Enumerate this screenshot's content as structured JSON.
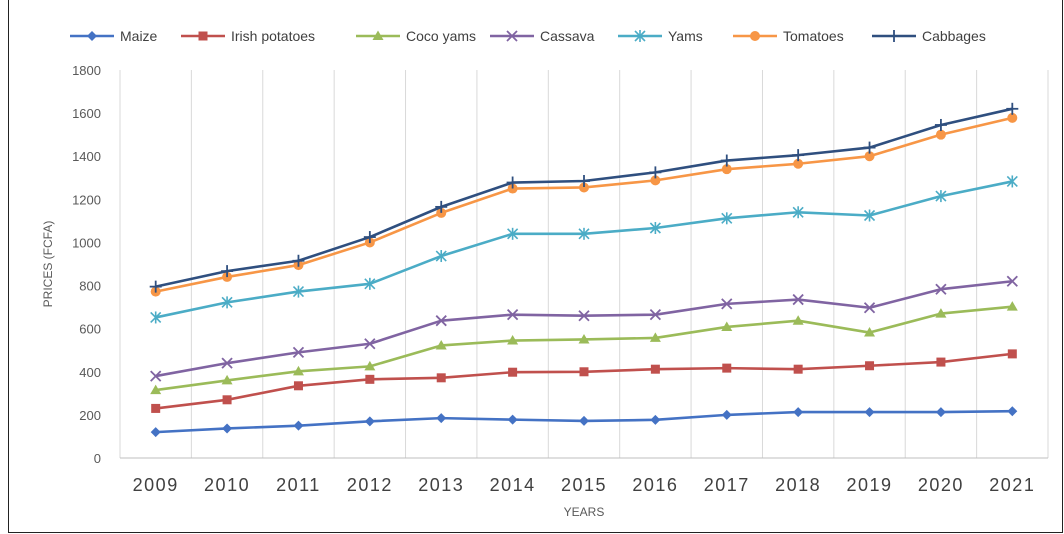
{
  "chart_data": {
    "type": "line",
    "title": "",
    "xlabel": "YEARS",
    "ylabel": "PRICES (FCFA)",
    "ylim": [
      0,
      1800
    ],
    "yticks": [
      0,
      200,
      400,
      600,
      800,
      1000,
      1200,
      1400,
      1600,
      1800
    ],
    "grid": "vertical",
    "legend_position": "top",
    "categories": [
      "2009",
      "2010",
      "2011",
      "2012",
      "2013",
      "2014",
      "2015",
      "2016",
      "2017",
      "2018",
      "2019",
      "2020",
      "2021"
    ],
    "series": [
      {
        "name": "Maize",
        "color": "#4472C4",
        "marker": "diamond",
        "values": [
          120,
          137,
          150,
          170,
          185,
          178,
          172,
          177,
          200,
          213,
          213,
          213,
          217
        ]
      },
      {
        "name": "Irish potatoes",
        "color": "#C0504D",
        "marker": "square",
        "values": [
          230,
          270,
          335,
          365,
          372,
          398,
          400,
          412,
          417,
          412,
          428,
          445,
          483
        ]
      },
      {
        "name": "Coco yams",
        "color": "#9BBB59",
        "marker": "triangle",
        "values": [
          315,
          360,
          402,
          425,
          522,
          545,
          550,
          557,
          608,
          637,
          582,
          670,
          702
        ]
      },
      {
        "name": "Cassava",
        "color": "#8064A2",
        "marker": "x",
        "values": [
          380,
          440,
          490,
          530,
          637,
          665,
          660,
          665,
          715,
          735,
          697,
          783,
          820
        ]
      },
      {
        "name": "Yams",
        "color": "#4BACC6",
        "marker": "star",
        "values": [
          652,
          722,
          772,
          808,
          937,
          1040,
          1040,
          1067,
          1112,
          1140,
          1125,
          1215,
          1283
        ]
      },
      {
        "name": "Tomatoes",
        "color": "#F79646",
        "marker": "circle",
        "values": [
          772,
          840,
          895,
          1000,
          1137,
          1250,
          1255,
          1288,
          1340,
          1365,
          1400,
          1500,
          1578
        ]
      },
      {
        "name": "Cabbages",
        "color": "#2F4F7F",
        "marker": "plus",
        "values": [
          795,
          867,
          915,
          1025,
          1165,
          1278,
          1285,
          1325,
          1380,
          1405,
          1440,
          1545,
          1620
        ]
      }
    ]
  }
}
